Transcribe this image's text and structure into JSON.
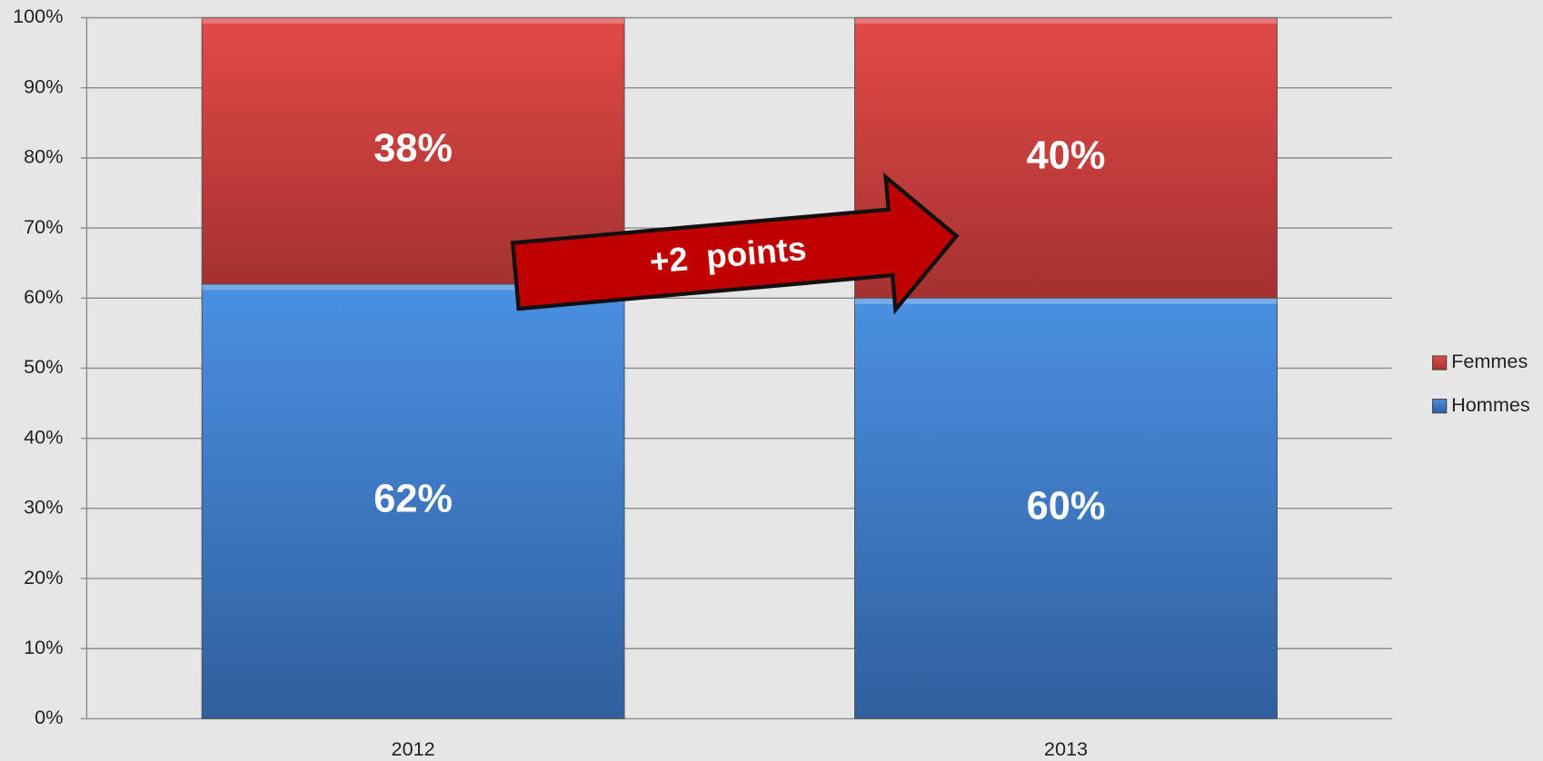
{
  "chart_data": {
    "type": "stacked_bar",
    "categories": [
      "2012",
      "2013"
    ],
    "series": [
      {
        "name": "Hommes",
        "color": "#3f7fd0",
        "values": [
          62,
          60
        ],
        "value_labels": [
          "62%",
          "60%"
        ]
      },
      {
        "name": "Femmes",
        "color": "#c93c3c",
        "values": [
          38,
          40
        ],
        "value_labels": [
          "38%",
          "40%"
        ]
      }
    ],
    "ylim": [
      0,
      100
    ],
    "yticks": [
      {
        "value": 0,
        "label": "0%"
      },
      {
        "value": 10,
        "label": "10%"
      },
      {
        "value": 20,
        "label": "20%"
      },
      {
        "value": 30,
        "label": "30%"
      },
      {
        "value": 40,
        "label": "40%"
      },
      {
        "value": 50,
        "label": "50%"
      },
      {
        "value": 60,
        "label": "60%"
      },
      {
        "value": 70,
        "label": "70%"
      },
      {
        "value": 80,
        "label": "80%"
      },
      {
        "value": 90,
        "label": "90%"
      },
      {
        "value": 100,
        "label": "100%"
      }
    ],
    "grid": true,
    "legend": "right",
    "annotation": "+2  points"
  }
}
